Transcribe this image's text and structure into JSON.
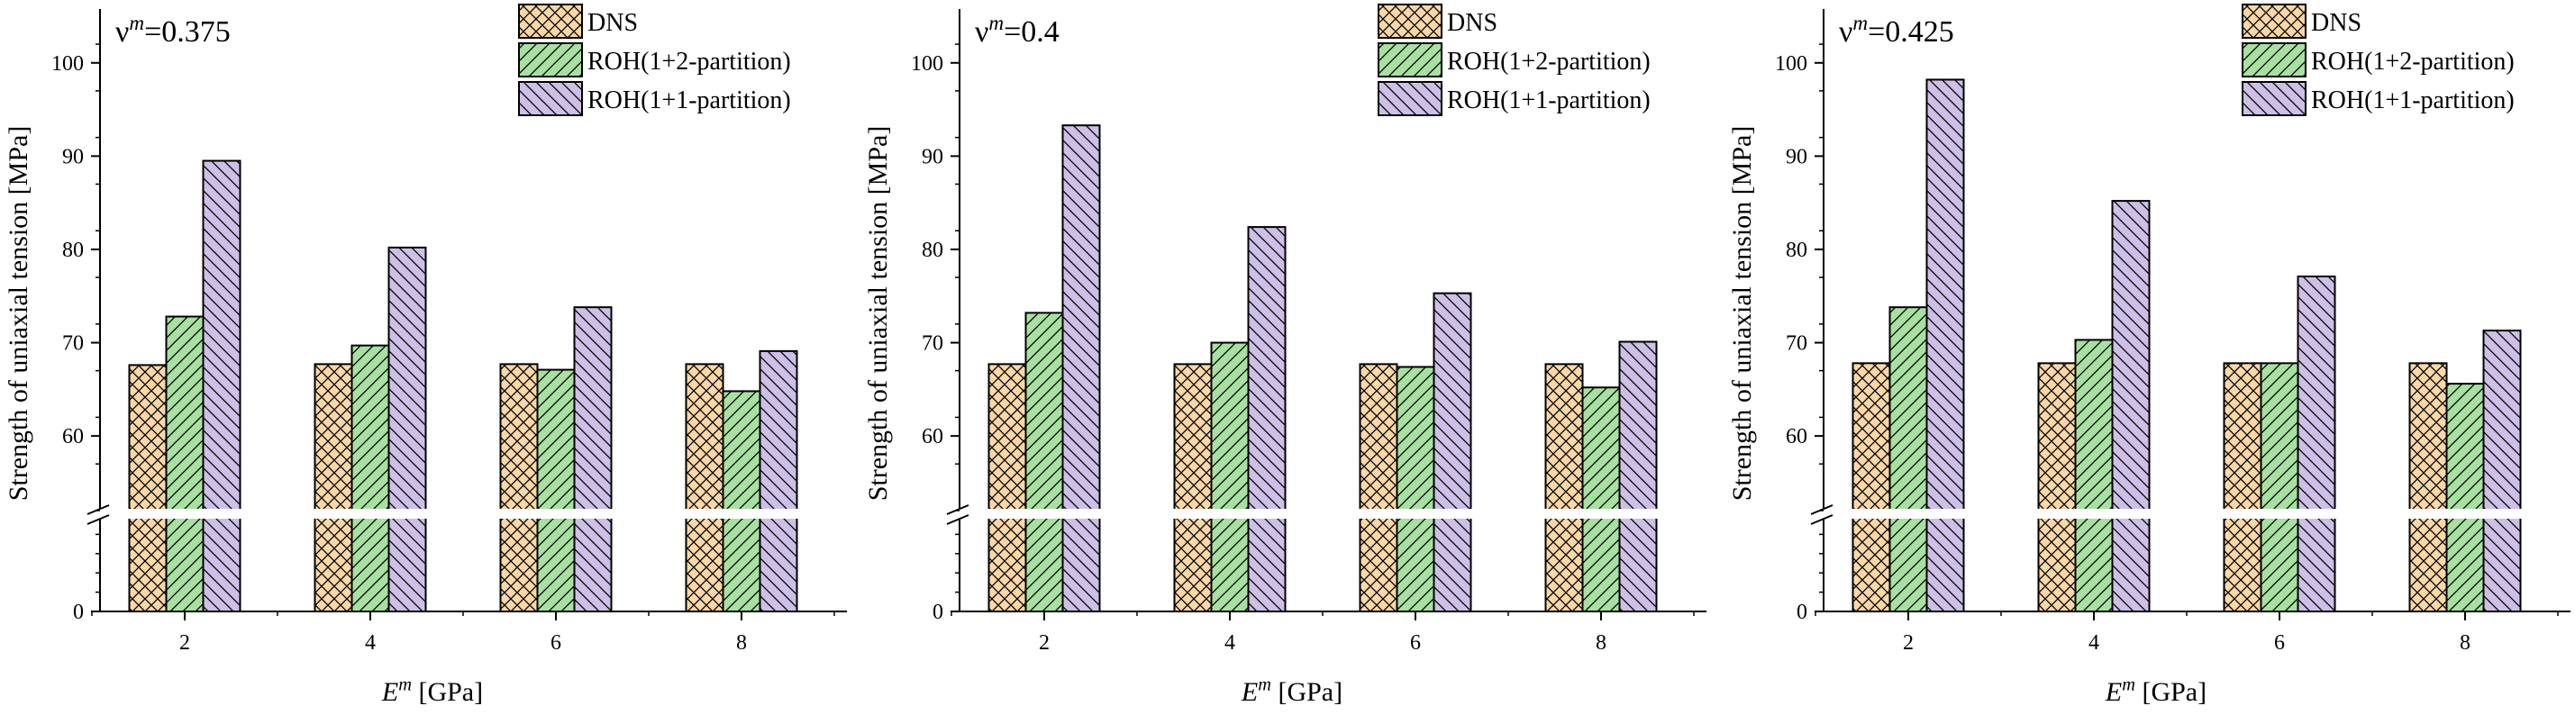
{
  "chart_data": [
    {
      "type": "bar",
      "annotation": {
        "symbol": "ν",
        "superscript": "m",
        "value": "=0.375"
      },
      "ylabel": "Strength of uniaxial tension [MPa]",
      "xlabel": {
        "symbol": "E",
        "superscript": "m",
        "unit": " [GPa]"
      },
      "categories": [
        "2",
        "4",
        "6",
        "8"
      ],
      "yticks": [
        "0",
        "60",
        "70",
        "80",
        "90",
        "100"
      ],
      "ylim_lower": [
        0,
        5
      ],
      "ylim_upper": [
        52,
        105
      ],
      "y_axis_break": true,
      "series": [
        {
          "name": "DNS",
          "values": [
            67.6,
            67.7,
            67.7,
            67.7
          ]
        },
        {
          "name": "ROH(1+2-partition)",
          "values": [
            72.8,
            69.7,
            67.1,
            64.8
          ]
        },
        {
          "name": "ROH(1+1-partition)",
          "values": [
            89.5,
            80.2,
            73.8,
            69.1
          ]
        }
      ]
    },
    {
      "type": "bar",
      "annotation": {
        "symbol": "ν",
        "superscript": "m",
        "value": "=0.4"
      },
      "ylabel": "Strength of uniaxial tension [MPa]",
      "xlabel": {
        "symbol": "E",
        "superscript": "m",
        "unit": " [GPa]"
      },
      "categories": [
        "2",
        "4",
        "6",
        "8"
      ],
      "yticks": [
        "0",
        "60",
        "70",
        "80",
        "90",
        "100"
      ],
      "ylim_lower": [
        0,
        5
      ],
      "ylim_upper": [
        52,
        105
      ],
      "y_axis_break": true,
      "series": [
        {
          "name": "DNS",
          "values": [
            67.7,
            67.7,
            67.7,
            67.7
          ]
        },
        {
          "name": "ROH(1+2-partition)",
          "values": [
            73.2,
            70.0,
            67.4,
            65.2
          ]
        },
        {
          "name": "ROH(1+1-partition)",
          "values": [
            93.3,
            82.4,
            75.3,
            70.1
          ]
        }
      ]
    },
    {
      "type": "bar",
      "annotation": {
        "symbol": "ν",
        "superscript": "m",
        "value": "=0.425"
      },
      "ylabel": "Strength of uniaxial tension [MPa]",
      "xlabel": {
        "symbol": "E",
        "superscript": "m",
        "unit": " [GPa]"
      },
      "categories": [
        "2",
        "4",
        "6",
        "8"
      ],
      "yticks": [
        "0",
        "60",
        "70",
        "80",
        "90",
        "100"
      ],
      "ylim_lower": [
        0,
        5
      ],
      "ylim_upper": [
        52,
        105
      ],
      "y_axis_break": true,
      "series": [
        {
          "name": "DNS",
          "values": [
            67.8,
            67.8,
            67.8,
            67.8
          ]
        },
        {
          "name": "ROH(1+2-partition)",
          "values": [
            73.8,
            70.3,
            67.8,
            65.6
          ]
        },
        {
          "name": "ROH(1+1-partition)",
          "values": [
            98.2,
            85.2,
            77.1,
            71.3
          ]
        }
      ]
    }
  ],
  "colors": {
    "DNS": "#fad7a8",
    "ROH(1+2-partition)": "#a8e0a2",
    "ROH(1+1-partition)": "#cdbfe6"
  }
}
